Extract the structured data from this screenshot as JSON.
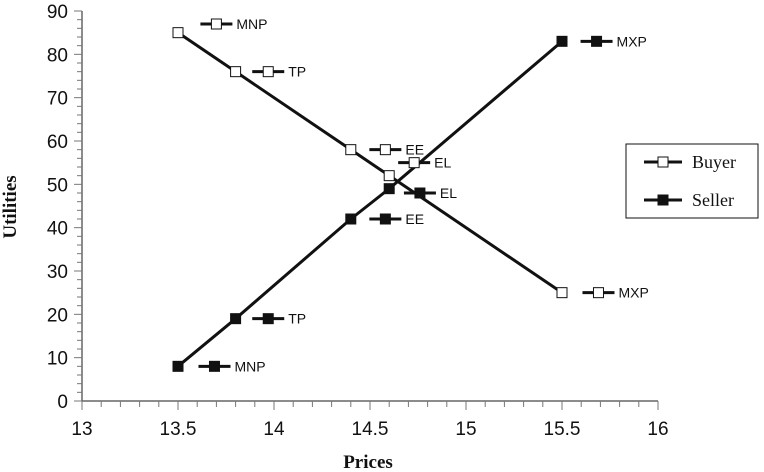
{
  "chart_data": {
    "type": "line",
    "title": "",
    "xlabel": "Prices",
    "ylabel": "Utilities",
    "xlim": [
      13,
      16
    ],
    "ylim": [
      0,
      90
    ],
    "x_ticks": [
      "13",
      "13.5",
      "14",
      "14.5",
      "15",
      "15.5",
      "16"
    ],
    "y_ticks": [
      "0",
      "10",
      "20",
      "30",
      "40",
      "50",
      "60",
      "70",
      "80",
      "90"
    ],
    "grid": false,
    "legend_position": "right",
    "series": [
      {
        "name": "Buyer",
        "marker": "open-square",
        "color": "#111111",
        "points": [
          {
            "x": 13.5,
            "y": 85
          },
          {
            "x": 13.8,
            "y": 76
          },
          {
            "x": 14.4,
            "y": 58
          },
          {
            "x": 14.6,
            "y": 52
          },
          {
            "x": 15.5,
            "y": 25
          }
        ]
      },
      {
        "name": "Seller",
        "marker": "filled-square",
        "color": "#111111",
        "points": [
          {
            "x": 13.5,
            "y": 8
          },
          {
            "x": 13.8,
            "y": 19
          },
          {
            "x": 14.4,
            "y": 42
          },
          {
            "x": 14.6,
            "y": 49
          },
          {
            "x": 15.5,
            "y": 83
          }
        ]
      }
    ],
    "annotations": [
      {
        "text": "MNP",
        "x": 13.7,
        "y": 87,
        "marker": "open-square"
      },
      {
        "text": "TP",
        "x": 13.97,
        "y": 76,
        "marker": "open-square"
      },
      {
        "text": "EE",
        "x": 14.58,
        "y": 58,
        "marker": "open-square"
      },
      {
        "text": "EL",
        "x": 14.73,
        "y": 55,
        "marker": "open-square"
      },
      {
        "text": "MXP",
        "x": 15.69,
        "y": 25,
        "marker": "open-square"
      },
      {
        "text": "MXP",
        "x": 15.68,
        "y": 83,
        "marker": "filled-square"
      },
      {
        "text": "EL",
        "x": 14.76,
        "y": 48,
        "marker": "filled-square"
      },
      {
        "text": "EE",
        "x": 14.58,
        "y": 42,
        "marker": "filled-square"
      },
      {
        "text": "TP",
        "x": 13.97,
        "y": 19,
        "marker": "filled-square"
      },
      {
        "text": "MNP",
        "x": 13.69,
        "y": 8,
        "marker": "filled-square"
      }
    ]
  }
}
